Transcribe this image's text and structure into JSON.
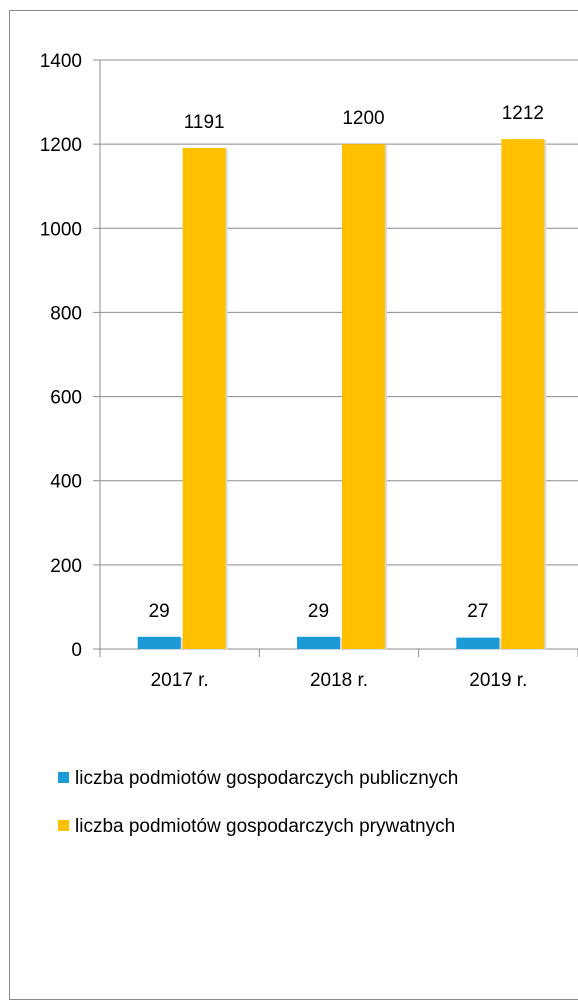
{
  "chart_data": {
    "type": "bar",
    "categories": [
      "2017 r.",
      "2018 r.",
      "2019 r."
    ],
    "series": [
      {
        "name": "liczba podmiotów gospodarczych publicznych",
        "values": [
          29,
          29,
          27
        ],
        "color": "#1a9ad6"
      },
      {
        "name": "liczba podmiotów gospodarczych prywatnych",
        "values": [
          1191,
          1200,
          1212
        ],
        "color": "#ffc000"
      }
    ],
    "ylim": [
      0,
      1400
    ],
    "yticks": [
      "0",
      "200",
      "400",
      "600",
      "800",
      "1000",
      "1200",
      "1400"
    ],
    "grid": true,
    "legend_placement": "bottom"
  },
  "legend": {
    "items": [
      "liczba podmiotów gospodarczych publicznych",
      "liczba podmiotów gospodarczych prywatnych"
    ]
  }
}
